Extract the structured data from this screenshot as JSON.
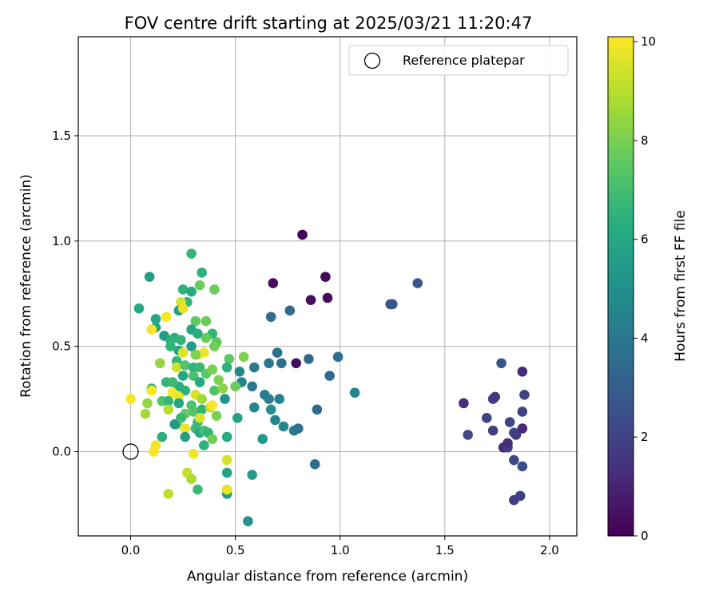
{
  "chart_data": {
    "type": "scatter",
    "title": "FOV centre drift starting at 2025/03/21 11:20:47",
    "xlabel": "Angular distance from reference (arcmin)",
    "ylabel": "Rotation from reference (arcmin)",
    "xlim": [
      -0.25,
      2.13
    ],
    "ylim": [
      -0.4,
      1.97
    ],
    "x_ticks": [
      0.0,
      0.5,
      1.0,
      1.5,
      2.0
    ],
    "x_tick_labels": [
      "0.0",
      "0.5",
      "1.0",
      "1.5",
      "2.0"
    ],
    "y_ticks": [
      0.0,
      0.5,
      1.0,
      1.5
    ],
    "y_tick_labels": [
      "0.0",
      "0.5",
      "1.0",
      "1.5"
    ],
    "grid": true,
    "colormap": "viridis",
    "colorbar": {
      "label": "Hours from first FF file",
      "range": [
        0,
        10.1
      ],
      "ticks": [
        0,
        2,
        4,
        6,
        8,
        10
      ],
      "tick_labels": [
        "0",
        "2",
        "4",
        "6",
        "8",
        "10"
      ]
    },
    "legend": {
      "location": "top-right",
      "entries": [
        {
          "label": "Reference platepar",
          "marker": "open-circle"
        }
      ]
    },
    "reference": {
      "x": 0.0,
      "y": 0.0
    },
    "points": [
      [
        0.82,
        1.03,
        0.1
      ],
      [
        0.68,
        0.8,
        0.3
      ],
      [
        0.93,
        0.83,
        0.2
      ],
      [
        0.86,
        0.72,
        0.4
      ],
      [
        0.94,
        0.73,
        0.3
      ],
      [
        0.79,
        0.42,
        0.4
      ],
      [
        1.37,
        0.8,
        2.8
      ],
      [
        1.24,
        0.7,
        2.6
      ],
      [
        1.25,
        0.7,
        2.7
      ],
      [
        0.76,
        0.67,
        3.4
      ],
      [
        0.67,
        0.64,
        3.6
      ],
      [
        0.7,
        0.47,
        3.7
      ],
      [
        0.85,
        0.44,
        3.5
      ],
      [
        0.99,
        0.45,
        3.6
      ],
      [
        0.95,
        0.36,
        3.4
      ],
      [
        0.66,
        0.42,
        4.0
      ],
      [
        0.72,
        0.42,
        3.8
      ],
      [
        0.59,
        0.4,
        4.2
      ],
      [
        0.58,
        0.31,
        4.1
      ],
      [
        0.52,
        0.38,
        4.7
      ],
      [
        0.53,
        0.33,
        4.5
      ],
      [
        0.64,
        0.27,
        4.2
      ],
      [
        0.71,
        0.25,
        4.4
      ],
      [
        0.66,
        0.25,
        4.3
      ],
      [
        1.07,
        0.28,
        4.6
      ],
      [
        0.89,
        0.2,
        3.5
      ],
      [
        0.59,
        0.21,
        4.6
      ],
      [
        0.67,
        0.2,
        4.9
      ],
      [
        0.69,
        0.15,
        4.5
      ],
      [
        0.73,
        0.12,
        4.6
      ],
      [
        0.78,
        0.1,
        4.0
      ],
      [
        0.8,
        0.11,
        3.8
      ],
      [
        0.63,
        0.06,
        5.3
      ],
      [
        0.88,
        -0.06,
        3.6
      ],
      [
        0.58,
        -0.11,
        5.4
      ],
      [
        0.56,
        -0.33,
        5.2
      ],
      [
        0.46,
        -0.2,
        5.4
      ],
      [
        1.59,
        0.23,
        1.3
      ],
      [
        1.61,
        0.08,
        2.2
      ],
      [
        1.7,
        0.16,
        2.0
      ],
      [
        1.73,
        0.25,
        1.9
      ],
      [
        1.74,
        0.26,
        1.6
      ],
      [
        1.73,
        0.1,
        1.9
      ],
      [
        1.77,
        0.42,
        2.6
      ],
      [
        1.78,
        0.02,
        1.0
      ],
      [
        1.8,
        0.02,
        1.8
      ],
      [
        1.8,
        0.04,
        1.3
      ],
      [
        1.81,
        0.14,
        2.1
      ],
      [
        1.83,
        0.09,
        2.2
      ],
      [
        1.84,
        0.08,
        1.8
      ],
      [
        1.83,
        -0.04,
        2.2
      ],
      [
        1.83,
        -0.23,
        1.8
      ],
      [
        1.86,
        -0.21,
        1.9
      ],
      [
        1.87,
        0.38,
        1.2
      ],
      [
        1.87,
        0.11,
        1.2
      ],
      [
        1.87,
        -0.07,
        2.4
      ],
      [
        1.87,
        0.19,
        2.0
      ],
      [
        1.88,
        0.27,
        2.0
      ],
      [
        0.29,
        0.94,
        6.7
      ],
      [
        0.09,
        0.83,
        5.6
      ],
      [
        0.34,
        0.85,
        6.4
      ],
      [
        0.33,
        0.79,
        7.8
      ],
      [
        0.25,
        0.77,
        6.5
      ],
      [
        0.4,
        0.77,
        7.8
      ],
      [
        0.29,
        0.76,
        6.2
      ],
      [
        0.27,
        0.71,
        6.6
      ],
      [
        0.24,
        0.71,
        9.5
      ],
      [
        0.23,
        0.67,
        5.6
      ],
      [
        0.04,
        0.68,
        6.0
      ],
      [
        0.25,
        0.68,
        9.8
      ],
      [
        0.31,
        0.62,
        7.6
      ],
      [
        0.36,
        0.62,
        7.8
      ],
      [
        0.17,
        0.64,
        10.0
      ],
      [
        0.12,
        0.63,
        6.0
      ],
      [
        0.12,
        0.59,
        6.1
      ],
      [
        0.1,
        0.58,
        10.0
      ],
      [
        0.29,
        0.58,
        6.0
      ],
      [
        0.32,
        0.56,
        6.3
      ],
      [
        0.39,
        0.56,
        6.6
      ],
      [
        0.16,
        0.55,
        5.5
      ],
      [
        0.21,
        0.54,
        6.3
      ],
      [
        0.36,
        0.54,
        7.7
      ],
      [
        0.41,
        0.52,
        7.5
      ],
      [
        0.19,
        0.53,
        6.4
      ],
      [
        0.24,
        0.53,
        6.6
      ],
      [
        0.29,
        0.5,
        5.5
      ],
      [
        0.19,
        0.5,
        6.6
      ],
      [
        0.23,
        0.48,
        6.0
      ],
      [
        0.25,
        0.47,
        9.6
      ],
      [
        0.32,
        0.46,
        9.8
      ],
      [
        0.35,
        0.47,
        9.8
      ],
      [
        0.4,
        0.5,
        7.9
      ],
      [
        0.31,
        0.46,
        8.1
      ],
      [
        0.47,
        0.44,
        7.5
      ],
      [
        0.22,
        0.43,
        6.6
      ],
      [
        0.14,
        0.42,
        8.4
      ],
      [
        0.22,
        0.4,
        9.4
      ],
      [
        0.26,
        0.41,
        7.3
      ],
      [
        0.3,
        0.4,
        6.5
      ],
      [
        0.33,
        0.4,
        6.8
      ],
      [
        0.36,
        0.37,
        7.5
      ],
      [
        0.39,
        0.39,
        8.0
      ],
      [
        0.42,
        0.34,
        8.1
      ],
      [
        0.46,
        0.4,
        6.4
      ],
      [
        0.54,
        0.45,
        8.1
      ],
      [
        0.3,
        0.36,
        7.1
      ],
      [
        0.25,
        0.36,
        6.0
      ],
      [
        0.17,
        0.33,
        6.6
      ],
      [
        0.23,
        0.31,
        6.3
      ],
      [
        0.2,
        0.33,
        6.8
      ],
      [
        0.26,
        0.29,
        6.4
      ],
      [
        0.33,
        0.33,
        6.1
      ],
      [
        0.4,
        0.29,
        7.3
      ],
      [
        0.44,
        0.3,
        8.3
      ],
      [
        0.5,
        0.31,
        7.8
      ],
      [
        0.45,
        0.25,
        5.1
      ],
      [
        0.1,
        0.3,
        6.7
      ],
      [
        0.1,
        0.29,
        10.0
      ],
      [
        0.2,
        0.28,
        10.0
      ],
      [
        0.23,
        0.26,
        9.9
      ],
      [
        0.31,
        0.27,
        9.5
      ],
      [
        0.34,
        0.25,
        8.6
      ],
      [
        0.29,
        0.22,
        7.2
      ],
      [
        0.15,
        0.24,
        7.3
      ],
      [
        0.18,
        0.24,
        6.6
      ],
      [
        0.23,
        0.23,
        5.9
      ],
      [
        0.08,
        0.23,
        8.4
      ],
      [
        0.0,
        0.25,
        10.0
      ],
      [
        0.07,
        0.18,
        8.7
      ],
      [
        0.18,
        0.2,
        9.0
      ],
      [
        0.26,
        0.18,
        7.6
      ],
      [
        0.3,
        0.19,
        7.3
      ],
      [
        0.34,
        0.2,
        6.5
      ],
      [
        0.38,
        0.21,
        9.2
      ],
      [
        0.39,
        0.22,
        10.0
      ],
      [
        0.41,
        0.17,
        8.0
      ],
      [
        0.24,
        0.16,
        6.7
      ],
      [
        0.32,
        0.14,
        6.6
      ],
      [
        0.33,
        0.16,
        9.6
      ],
      [
        0.22,
        0.13,
        7.5
      ],
      [
        0.21,
        0.13,
        5.4
      ],
      [
        0.26,
        0.11,
        9.9
      ],
      [
        0.31,
        0.11,
        6.8
      ],
      [
        0.33,
        0.09,
        5.9
      ],
      [
        0.35,
        0.1,
        7.0
      ],
      [
        0.37,
        0.09,
        6.6
      ],
      [
        0.39,
        0.06,
        7.9
      ],
      [
        0.46,
        0.07,
        6.1
      ],
      [
        0.51,
        0.16,
        5.8
      ],
      [
        0.26,
        0.07,
        5.6
      ],
      [
        0.15,
        0.07,
        6.4
      ],
      [
        0.12,
        0.03,
        9.9
      ],
      [
        0.11,
        0.0,
        10.0
      ],
      [
        0.3,
        -0.01,
        9.9
      ],
      [
        0.35,
        0.03,
        6.5
      ],
      [
        0.46,
        -0.04,
        9.5
      ],
      [
        0.46,
        -0.1,
        5.9
      ],
      [
        0.27,
        -0.1,
        9.2
      ],
      [
        0.29,
        -0.13,
        8.8
      ],
      [
        0.46,
        -0.18,
        9.8
      ],
      [
        0.32,
        -0.18,
        6.8
      ],
      [
        0.18,
        -0.2,
        9.1
      ]
    ]
  }
}
